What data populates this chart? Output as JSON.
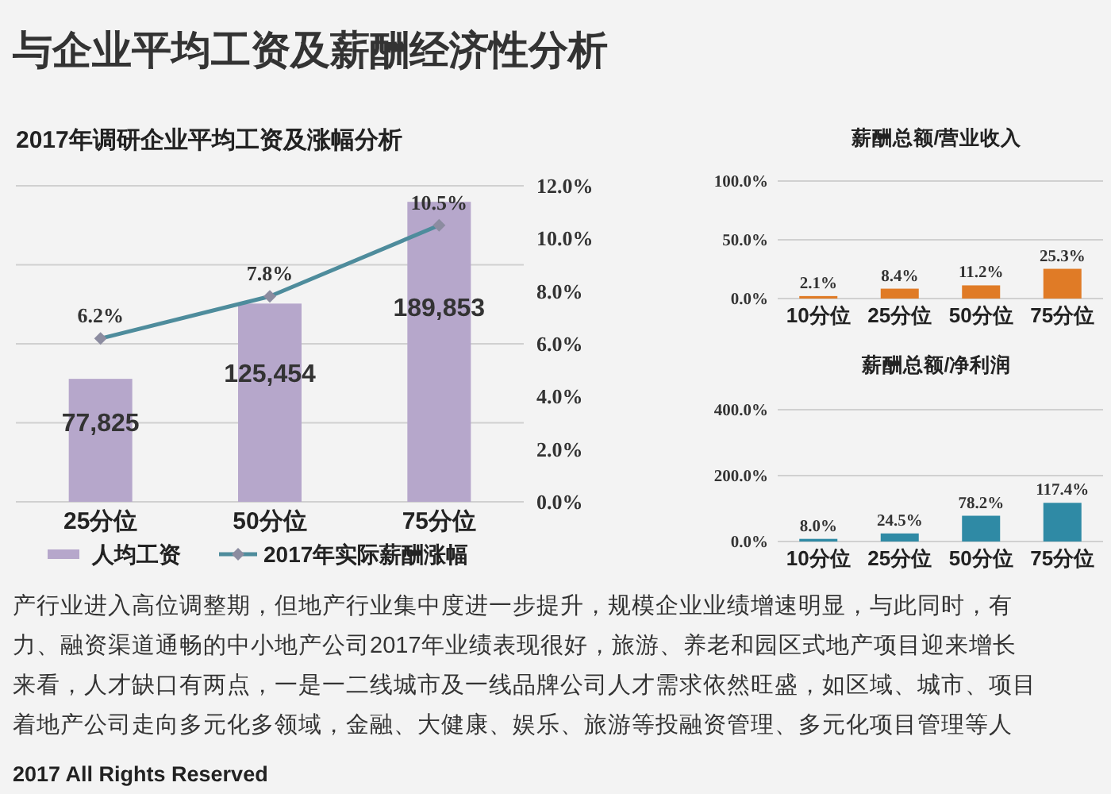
{
  "chart_data": [
    {
      "type": "other",
      "title": "与企业平均工资及薪酬经济性分析"
    },
    {
      "type": "bar",
      "title": "2017年调研企业平均工资及涨幅分析",
      "categories": [
        "25分位",
        "50分位",
        "75分位"
      ],
      "series": [
        {
          "name": "人均工资",
          "type": "bar",
          "color": "#b6a7cb",
          "values": [
            77825,
            125454,
            189853
          ],
          "value_labels": [
            "77,825",
            "125,454",
            "189,853"
          ]
        },
        {
          "name": "2017年实际薪酬涨幅",
          "type": "line",
          "axis": "y2",
          "color": "#4e8c9c",
          "values": [
            6.2,
            7.8,
            10.5
          ],
          "value_labels": [
            "6.2%",
            "7.8%",
            "10.5%"
          ]
        }
      ],
      "ylim": [
        0,
        200000
      ],
      "yticks": [
        {
          "value": 0,
          "label": null
        },
        {
          "value": 50000,
          "label": null
        },
        {
          "value": 100000,
          "label": null
        },
        {
          "value": 150000,
          "label": null
        },
        {
          "value": 200000,
          "label": null
        }
      ],
      "y2lim": [
        0,
        12
      ],
      "y2ticks": [
        {
          "value": 0,
          "label": "0.0%"
        },
        {
          "value": 2,
          "label": "2.0%"
        },
        {
          "value": 4,
          "label": "4.0%"
        },
        {
          "value": 6,
          "label": "6.0%"
        },
        {
          "value": 8,
          "label": "8.0%"
        },
        {
          "value": 10,
          "label": "10.0%"
        },
        {
          "value": 12,
          "label": "12.0%"
        }
      ],
      "grid": "y",
      "legend": "bottom",
      "marker": "diamond"
    },
    {
      "type": "bar",
      "title": "薪酬总额/营业收入",
      "categories": [
        "10分位",
        "25分位",
        "50分位",
        "75分位"
      ],
      "values": [
        2.1,
        8.4,
        11.2,
        25.3
      ],
      "color": "#e07b26",
      "value_labels": [
        "2.1%",
        "8.4%",
        "11.2%",
        "25.3%"
      ],
      "ylim": [
        0,
        100
      ],
      "yticks": [
        {
          "value": 0,
          "label": "0.0%"
        },
        {
          "value": 50,
          "label": "50.0%"
        },
        {
          "value": 100,
          "label": "100.0%"
        }
      ],
      "grid": "y"
    },
    {
      "type": "bar",
      "title": "薪酬总额/净利润",
      "categories": [
        "10分位",
        "25分位",
        "50分位",
        "75分位"
      ],
      "values": [
        8.0,
        24.5,
        78.2,
        117.4
      ],
      "color": "#2f8aa5",
      "value_labels": [
        "8.0%",
        "24.5%",
        "78.2%",
        "117.4%"
      ],
      "ylim": [
        0,
        400
      ],
      "yticks": [
        {
          "value": 0,
          "label": "0.0%"
        },
        {
          "value": 200,
          "label": "200.0%"
        },
        {
          "value": 400,
          "label": "400.0%"
        }
      ],
      "grid": "y"
    },
    {
      "type": "other",
      "annotations": [
        "产行业进入高位调整期，但地产行业集中度进一步提升，规模企业业绩增速明显，与此同时，有",
        "力、融资渠道通畅的中小地产公司2017年业绩表现很好，旅游、养老和园区式地产项目迎来增长",
        "来看，人才缺口有两点，一是一二线城市及一线品牌公司人才需求依然旺盛，如区域、城市、项目",
        "着地产公司走向多元化多领域，金融、大健康、娱乐、旅游等投融资管理、多元化项目管理等人",
        "2017 All Rights Reserved"
      ]
    }
  ]
}
